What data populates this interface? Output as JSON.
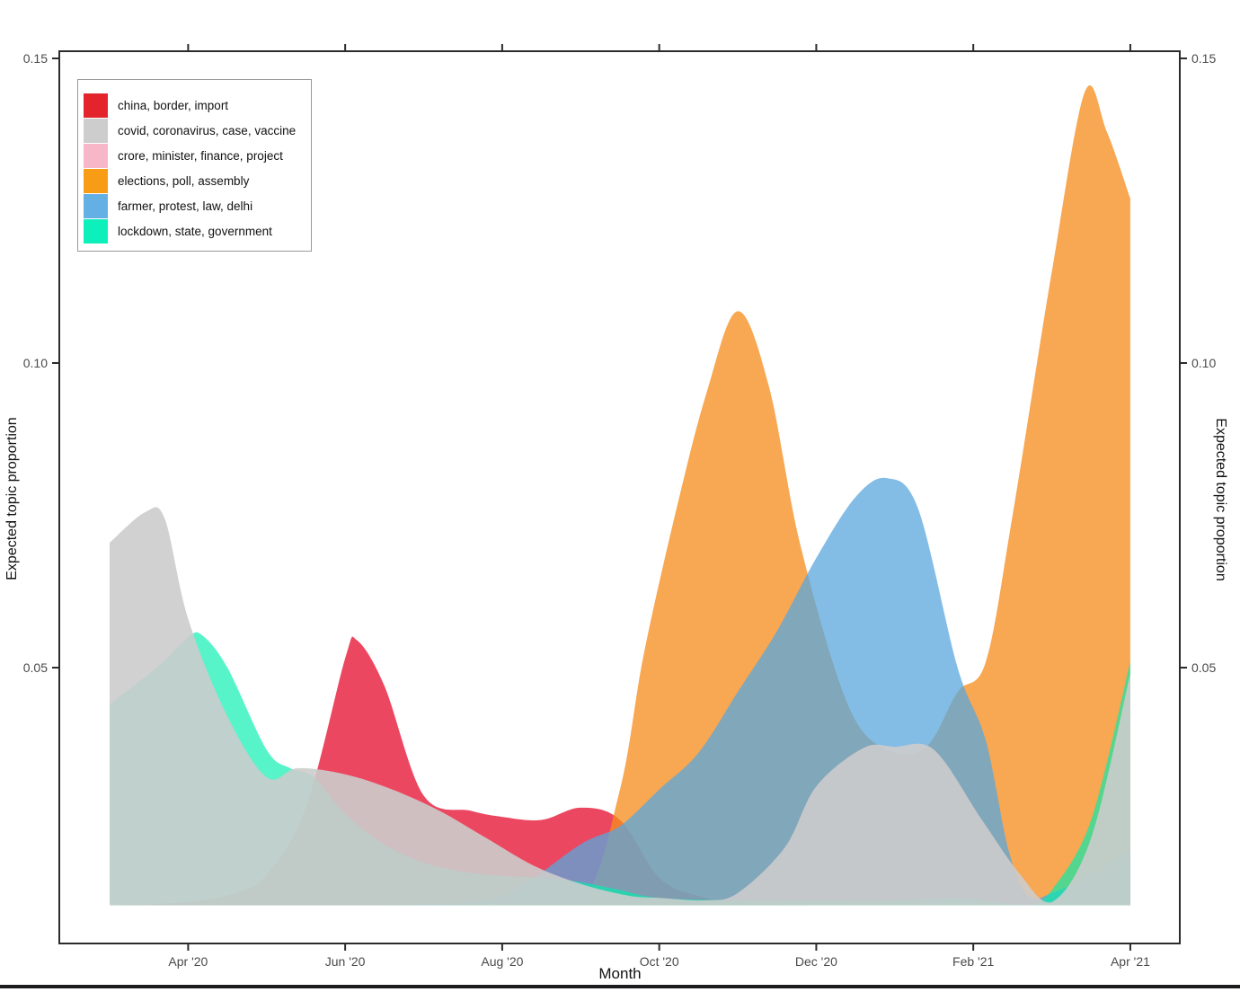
{
  "figure": {
    "xlabel": "Month",
    "ylabel_left": "Expected topic proportion",
    "ylabel_right": "Expected topic proportion",
    "frame_color": "#2b2b2b",
    "tick_label_color": "#4a4a4a"
  },
  "legend": {
    "items": [
      {
        "label": "china, border, import",
        "color": "#E3242D"
      },
      {
        "label": "covid, coronavirus, case, vaccine",
        "color": "#CDCDCD"
      },
      {
        "label": "crore, minister, finance, project",
        "color": "#F8B6C9"
      },
      {
        "label": "elections, poll, assembly",
        "color": "#F89C15"
      },
      {
        "label": "farmer, protest, law, delhi",
        "color": "#64B0E4"
      },
      {
        "label": "lockdown, state, government",
        "color": "#0EF0BC"
      }
    ]
  },
  "chart_data": {
    "type": "area",
    "mode": "overlapping-identity-areas",
    "title": "",
    "xlabel": "Month",
    "ylabel": "Expected topic proportion",
    "x_unit": "months, 0 = Mar '20 through 13 = Apr '21",
    "baseline": 0.011,
    "ylim": [
      0.005,
      0.155
    ],
    "grid": false,
    "legend_position": "top-left inside",
    "x_ticks": [
      {
        "i": 1,
        "label": "Apr '20"
      },
      {
        "i": 3,
        "label": "Jun '20"
      },
      {
        "i": 5,
        "label": "Aug '20"
      },
      {
        "i": 7,
        "label": "Oct '20"
      },
      {
        "i": 9,
        "label": "Dec '20"
      },
      {
        "i": 11,
        "label": "Feb '21"
      },
      {
        "i": 13,
        "label": "Apr '21"
      }
    ],
    "y_ticks": [
      {
        "v": 0.05,
        "label": "0.05"
      },
      {
        "v": 0.1,
        "label": "0.10"
      },
      {
        "v": 0.15,
        "label": "0.15"
      }
    ],
    "series": [
      {
        "name": "crore, minister, finance, project",
        "key": "crore",
        "fill": "#F8B6C9",
        "alpha": 0.8,
        "x": [
          0,
          3,
          6,
          9,
          13
        ],
        "y": [
          0.011,
          0.011,
          0.011,
          0.011,
          0.011
        ]
      },
      {
        "name": "china, border, import",
        "key": "china",
        "fill": "#E81F3D",
        "alpha": 0.82,
        "x": [
          0,
          1,
          1.6,
          2,
          2.5,
          3,
          3.15,
          3.5,
          4,
          4.6,
          5,
          5.5,
          6,
          6.5,
          7,
          7.5,
          8,
          9,
          10,
          11,
          12,
          13
        ],
        "y": [
          0.011,
          0.0115,
          0.013,
          0.016,
          0.027,
          0.0515,
          0.0545,
          0.047,
          0.029,
          0.0265,
          0.0255,
          0.025,
          0.027,
          0.025,
          0.0155,
          0.0125,
          0.0115,
          0.011,
          0.011,
          0.011,
          0.011,
          0.011
        ]
      },
      {
        "name": "elections, poll, assembly",
        "key": "elections",
        "fill": "#F68C1E",
        "alpha": 0.77,
        "x": [
          0,
          2,
          4,
          5,
          6,
          6.5,
          6.8,
          7.2,
          7.6,
          8,
          8.4,
          8.8,
          9.4,
          9.9,
          10.4,
          10.8,
          11.16,
          11.5,
          12,
          12.42,
          12.7,
          13
        ],
        "y": [
          0.011,
          0.011,
          0.011,
          0.0112,
          0.0115,
          0.03,
          0.052,
          0.075,
          0.095,
          0.1085,
          0.096,
          0.07,
          0.044,
          0.0365,
          0.037,
          0.046,
          0.051,
          0.075,
          0.115,
          0.1445,
          0.138,
          0.127
        ]
      },
      {
        "name": "farmer, protest, law, delhi",
        "key": "farmer",
        "fill": "#5AA7DE",
        "alpha": 0.75,
        "x": [
          0,
          3,
          4,
          5,
          6,
          6.5,
          7,
          7.5,
          8,
          8.5,
          9,
          9.5,
          9.9,
          10.3,
          10.8,
          11.16,
          11.45,
          11.7,
          12,
          12.5,
          13
        ],
        "y": [
          0.011,
          0.011,
          0.0112,
          0.0125,
          0.021,
          0.024,
          0.03,
          0.036,
          0.046,
          0.056,
          0.068,
          0.078,
          0.0811,
          0.076,
          0.05,
          0.038,
          0.02,
          0.0125,
          0.013,
          0.016,
          0.02
        ]
      },
      {
        "name": "lockdown, state, government",
        "key": "lockdown",
        "fill": "#00EFAE",
        "alpha": 0.66,
        "x": [
          0,
          0.6,
          1,
          1.18,
          1.5,
          2,
          2.3,
          2.6,
          3,
          3.5,
          4,
          4.5,
          5,
          5.5,
          6,
          6.5,
          7,
          8,
          9,
          10,
          10.8,
          11.3,
          11.7,
          12,
          12.5,
          13
        ],
        "y": [
          0.044,
          0.05,
          0.055,
          0.0553,
          0.05,
          0.0365,
          0.0335,
          0.032,
          0.026,
          0.021,
          0.018,
          0.0165,
          0.0158,
          0.0155,
          0.0148,
          0.0135,
          0.0122,
          0.0118,
          0.0118,
          0.0118,
          0.0122,
          0.0115,
          0.011,
          0.0135,
          0.025,
          0.051
        ]
      },
      {
        "name": "covid, coronavirus, case, vaccine",
        "key": "covid",
        "fill": "#CCCCCC",
        "alpha": 0.9,
        "x": [
          0,
          0.45,
          0.7,
          1,
          1.5,
          2,
          2.4,
          3,
          3.6,
          4.2,
          4.8,
          5.4,
          6,
          6.6,
          7,
          7.6,
          8,
          8.6,
          9,
          9.6,
          10,
          10.5,
          11.1,
          11.6,
          12,
          12.5,
          13
        ],
        "y": [
          0.0705,
          0.0755,
          0.0745,
          0.058,
          0.042,
          0.032,
          0.0335,
          0.0325,
          0.03,
          0.0265,
          0.022,
          0.0175,
          0.0145,
          0.0126,
          0.0122,
          0.0118,
          0.013,
          0.0205,
          0.0305,
          0.0368,
          0.037,
          0.0365,
          0.0252,
          0.016,
          0.0115,
          0.022,
          0.049
        ]
      }
    ]
  }
}
